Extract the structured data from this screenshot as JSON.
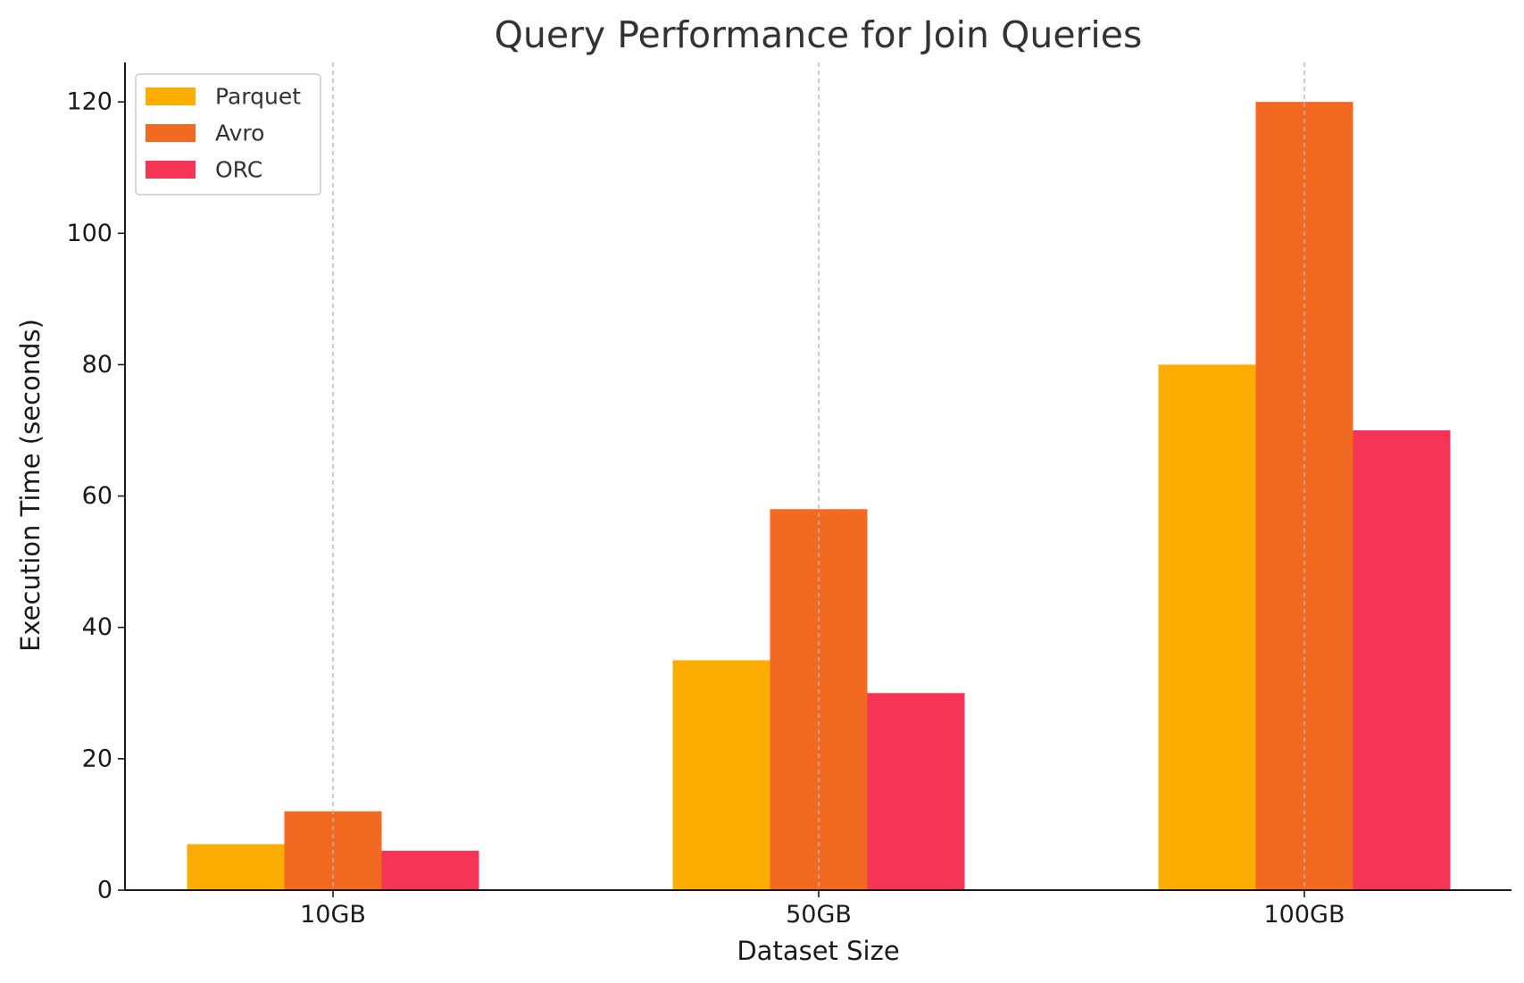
{
  "chart_data": {
    "type": "bar",
    "title": "Query Performance for Join Queries",
    "xlabel": "Dataset Size",
    "ylabel": "Execution Time (seconds)",
    "categories": [
      "10GB",
      "50GB",
      "100GB"
    ],
    "series": [
      {
        "name": "Parquet",
        "values": [
          7,
          35,
          80
        ],
        "color": "#FDAC00"
      },
      {
        "name": "Avro",
        "values": [
          12,
          58,
          120
        ],
        "color": "#F26A22"
      },
      {
        "name": "ORC",
        "values": [
          6,
          30,
          70
        ],
        "color": "#F53456"
      }
    ],
    "ylim": [
      0,
      126
    ],
    "yticks": [
      0,
      20,
      40,
      60,
      80,
      100,
      120
    ],
    "grid": "x-dashed",
    "legend_position": "top-left"
  }
}
